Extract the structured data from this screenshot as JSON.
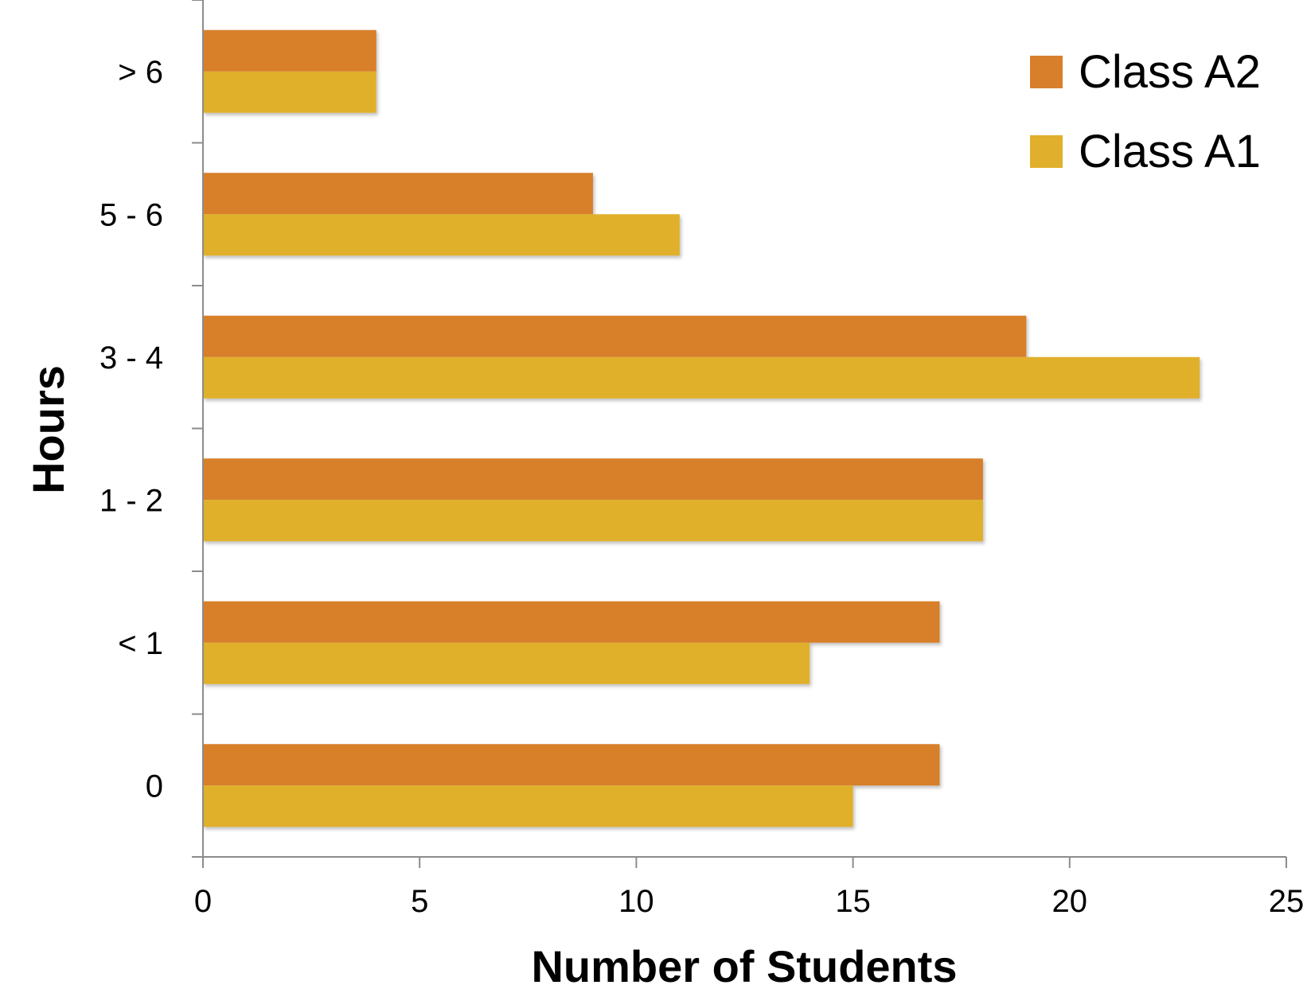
{
  "chart_data": {
    "type": "bar",
    "orientation": "horizontal",
    "categories": [
      "0",
      "< 1",
      "1 - 2",
      "3 - 4",
      "5 - 6",
      "> 6"
    ],
    "series": [
      {
        "name": "Class A2",
        "values": [
          17,
          17,
          18,
          19,
          9,
          4
        ],
        "color": "#D87F2C"
      },
      {
        "name": "Class A1",
        "values": [
          15,
          14,
          18,
          23,
          11,
          4
        ],
        "color": "#E0B02C"
      }
    ],
    "xlabel": "Number of Students",
    "ylabel": "Hours",
    "xlim": [
      0,
      25
    ],
    "xticks": [
      0,
      5,
      10,
      15,
      20,
      25
    ],
    "grid": false,
    "legend_position": "top-right"
  }
}
